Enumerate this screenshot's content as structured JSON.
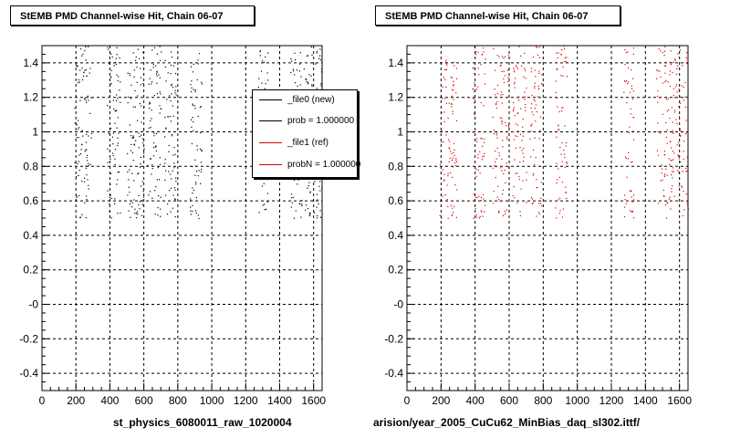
{
  "chart_data": [
    {
      "type": "scatter",
      "title": "StEMB PMD Channel-wise Hit, Chain 06-07",
      "xlabel": "st_physics_6080011_raw_1020004",
      "ylabel": "",
      "xlim": [
        0,
        1650
      ],
      "ylim": [
        -0.5,
        1.5
      ],
      "x_ticks": [
        "0",
        "200",
        "400",
        "600",
        "800",
        "1000",
        "1200",
        "1400",
        "1600"
      ],
      "y_ticks": [
        "1.4",
        "1.2",
        "1",
        "0.8",
        "0.6",
        "0.4",
        "0.2",
        "-0",
        "-0.2",
        "-0.4"
      ],
      "grid": true,
      "series": [
        {
          "name": "_file0 (new)",
          "color": "#000000",
          "y_range": [
            0.5,
            1.5
          ],
          "x_bands": [
            [
              190,
              290
            ],
            [
              380,
              460
            ],
            [
              500,
              600
            ],
            [
              620,
              700
            ],
            [
              720,
              790
            ],
            [
              870,
              940
            ],
            [
              1270,
              1330
            ],
            [
              1460,
              1560
            ],
            [
              1560,
              1650
            ]
          ]
        }
      ],
      "legend": {
        "position": "top-right",
        "entries": [
          {
            "label": "_file0 (new)",
            "color": "#000000"
          },
          {
            "label": "prob = 1.000000",
            "color": "#000000"
          },
          {
            "label": "_file1 (ref)",
            "color": "#dd0000"
          },
          {
            "label": "probN = 1.000000",
            "color": "#dd0000"
          }
        ]
      }
    },
    {
      "type": "scatter",
      "title": "StEMB PMD Channel-wise Hit, Chain 06-07",
      "xlabel": "arision/year_2005_CuCu62_MinBias_daq_sl302.ittf/",
      "ylabel": "",
      "xlim": [
        0,
        1650
      ],
      "ylim": [
        -0.5,
        1.5
      ],
      "x_ticks": [
        "0",
        "200",
        "400",
        "600",
        "800",
        "1000",
        "1200",
        "1400",
        "1600"
      ],
      "y_ticks": [
        "1.4",
        "1.2",
        "1",
        "0.8",
        "0.6",
        "0.4",
        "0.2",
        "-0",
        "-0.2",
        "-0.4"
      ],
      "grid": true,
      "series": [
        {
          "name": "_file1 (ref)",
          "color": "#dd0000",
          "y_range": [
            0.5,
            1.5
          ],
          "x_bands": [
            [
              190,
              290
            ],
            [
              380,
              460
            ],
            [
              500,
              600
            ],
            [
              620,
              700
            ],
            [
              720,
              790
            ],
            [
              870,
              940
            ],
            [
              1270,
              1330
            ],
            [
              1460,
              1560
            ],
            [
              1560,
              1650
            ]
          ]
        }
      ]
    }
  ]
}
